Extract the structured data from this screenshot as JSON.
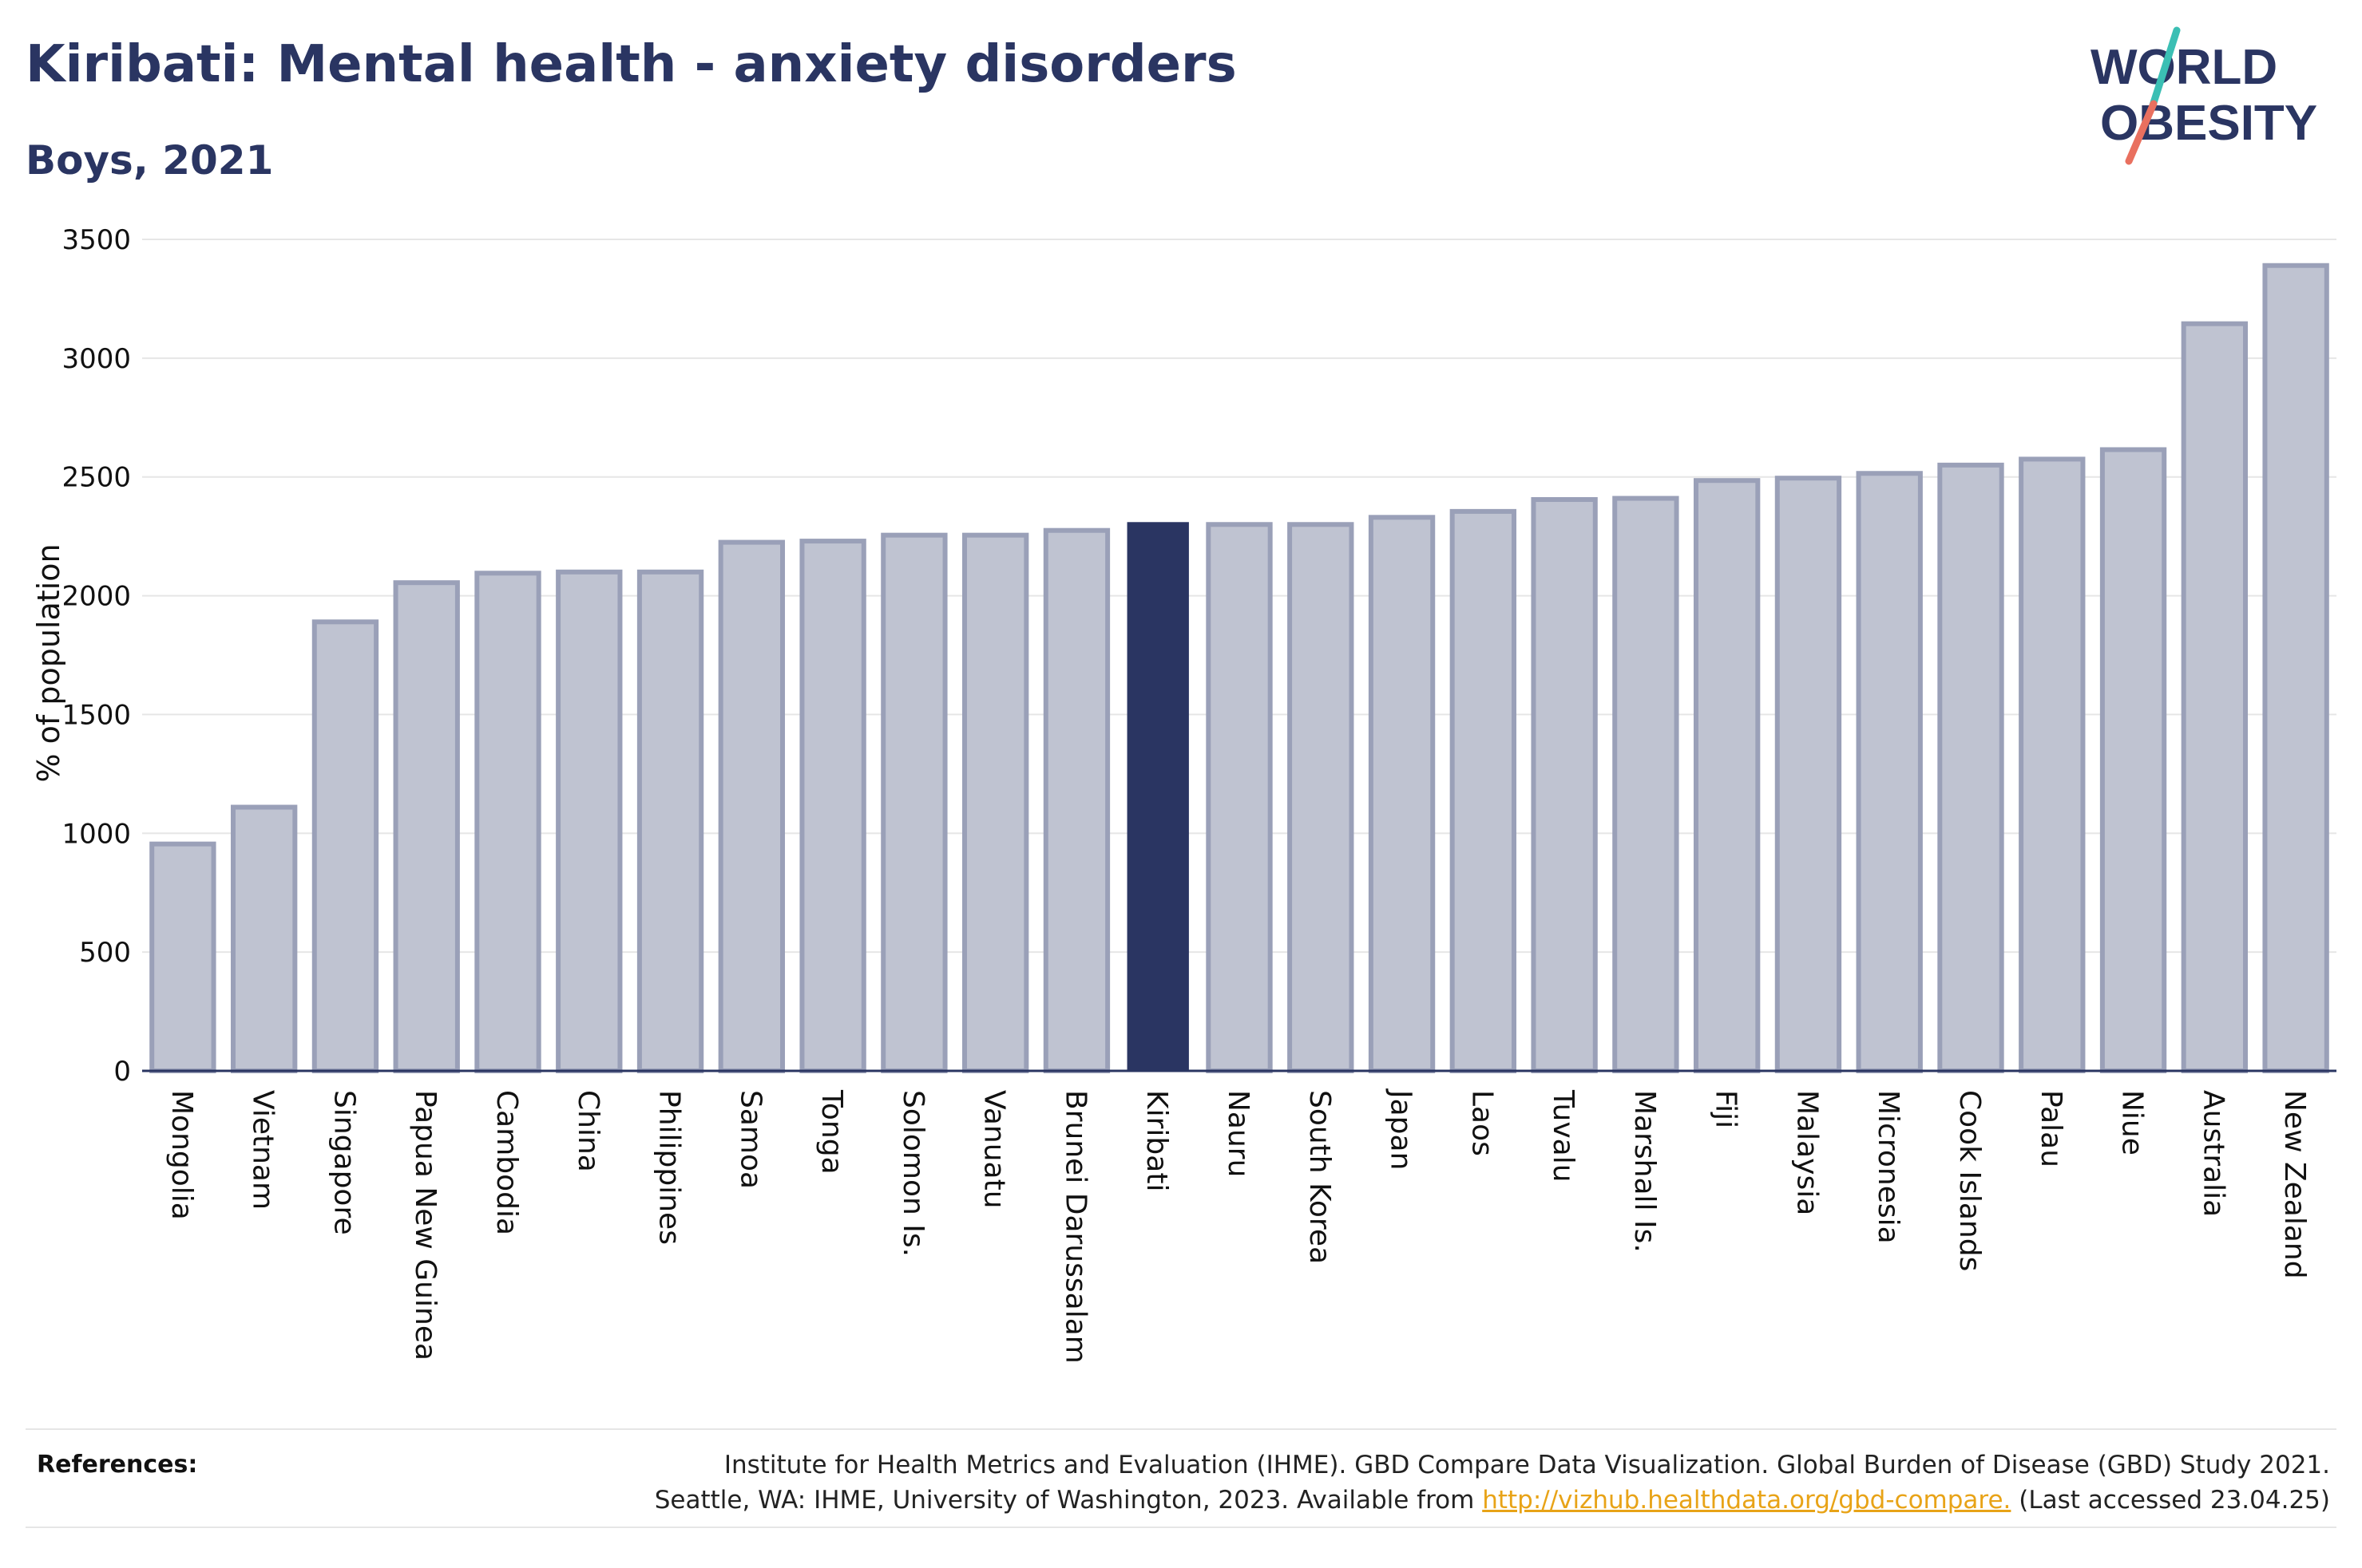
{
  "header": {
    "title": "Kiribati: Mental health - anxiety disorders",
    "subtitle": "Boys, 2021"
  },
  "logo": {
    "line1": "WORLD",
    "line2": "OBESITY",
    "colors": {
      "text": "#2a3562",
      "slash_top": "#3bbfb4",
      "slash_bottom": "#e9705f"
    }
  },
  "chart_data": {
    "type": "bar",
    "title": "Kiribati: Mental health - anxiety disorders",
    "subtitle": "Boys, 2021",
    "xlabel": "",
    "ylabel": "% of population",
    "ylim": [
      0,
      3500
    ],
    "yticks": [
      0,
      500,
      1000,
      1500,
      2000,
      2500,
      3000,
      3500
    ],
    "grid": true,
    "highlight": "Kiribati",
    "colors": {
      "bar": "#bfc3d1",
      "bar_edge": "#9aa0b8",
      "highlight": "#2a3562",
      "grid": "#e6e6e6",
      "axis": "#2a3562"
    },
    "categories": [
      "Mongolia",
      "Vietnam",
      "Singapore",
      "Papua New Guinea",
      "Cambodia",
      "China",
      "Philippines",
      "Samoa",
      "Tonga",
      "Solomon Is.",
      "Vanuatu",
      "Brunei Darussalam",
      "Kiribati",
      "Nauru",
      "South Korea",
      "Japan",
      "Laos",
      "Tuvalu",
      "Marshall Is.",
      "Fiji",
      "Malaysia",
      "Micronesia",
      "Cook Islands",
      "Palau",
      "Niue",
      "Australia",
      "New Zealand"
    ],
    "values": [
      955,
      1110,
      1890,
      2055,
      2095,
      2100,
      2100,
      2225,
      2230,
      2255,
      2255,
      2275,
      2310,
      2300,
      2300,
      2330,
      2355,
      2405,
      2410,
      2485,
      2495,
      2515,
      2550,
      2575,
      2615,
      3145,
      3390
    ]
  },
  "references": {
    "label": "References:",
    "line1": "Institute for Health Metrics and Evaluation (IHME). GBD Compare Data Visualization. Global Burden of Disease (GBD) Study 2021.",
    "line2_prefix": "Seattle, WA: IHME, University of Washington, 2023. Available from ",
    "link": "http://vizhub.healthdata.org/gbd-compare.",
    "line2_suffix": " (Last accessed 23.04.25)"
  }
}
